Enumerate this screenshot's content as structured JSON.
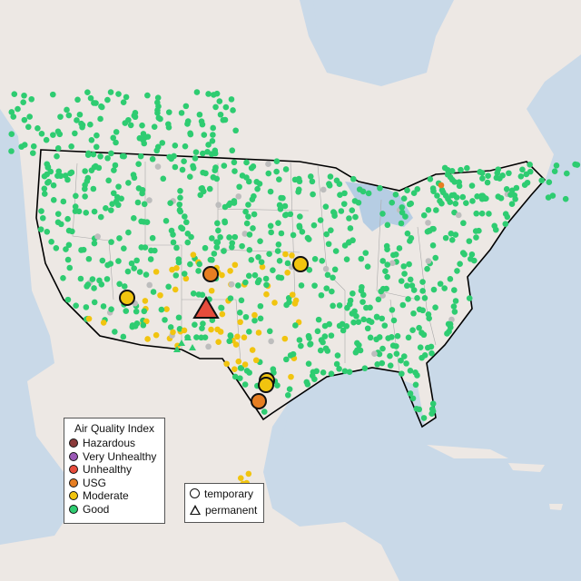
{
  "legend": {
    "title": "Air Quality Index",
    "items": [
      {
        "label": "Hazardous",
        "color": "#8b3a3a"
      },
      {
        "label": "Very Unhealthy",
        "color": "#9b59b6"
      },
      {
        "label": "Unhealthy",
        "color": "#e74c3c"
      },
      {
        "label": "USG",
        "color": "#e67e22"
      },
      {
        "label": "Moderate",
        "color": "#f1c40f"
      },
      {
        "label": "Good",
        "color": "#2ecc71"
      }
    ]
  },
  "type_legend": {
    "items": [
      {
        "label": "temporary",
        "shape": "circle"
      },
      {
        "label": "permanent",
        "shape": "triangle"
      }
    ]
  },
  "colors": {
    "ocean": "#c9d9e8",
    "land": "#ede8e4",
    "border": "#000000",
    "no_data": "#bdbdbd"
  }
}
